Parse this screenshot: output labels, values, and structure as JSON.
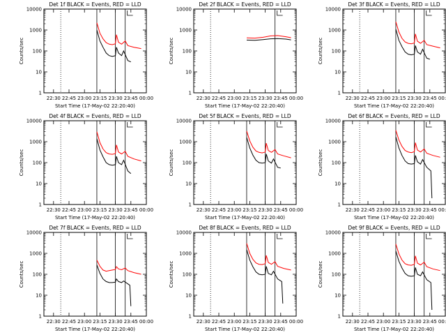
{
  "figure": {
    "x_axis_label": "Start Time (17-May-02 22:20:40)",
    "y_axis_label": "Counts/sec",
    "x_ticks": [
      "22:30",
      "22:45",
      "23:00",
      "23:15",
      "23:30",
      "23:45",
      "00:00"
    ],
    "y_ticks": [
      "1",
      "10",
      "100",
      "1000",
      "10000"
    ],
    "colors": {
      "events": "#000000",
      "lld": "#ff0000"
    }
  },
  "chart_data": [
    {
      "type": "line",
      "title": "Det 1f BLACK = Events, RED = LLD",
      "xlim": [
        "22:20:40",
        "00:00"
      ],
      "ylim": [
        1,
        10000
      ],
      "yscale": "log",
      "dotted_markers": [
        "22:20:40",
        "22:37:00"
      ],
      "solid_markers": [
        "23:12:00",
        "23:30:00",
        "23:39:30"
      ],
      "series": [
        {
          "key": "events",
          "x": [
            "23:12:00",
            "23:15:00",
            "23:18:00",
            "23:21:00",
            "23:24:00",
            "23:27:00",
            "23:30:00",
            "23:31:00",
            "23:33:00",
            "23:36:00",
            "23:38:00",
            "23:42:00",
            "23:45:00"
          ],
          "values": [
            1000,
            300,
            150,
            80,
            60,
            55,
            60,
            150,
            80,
            60,
            100,
            35,
            30
          ]
        },
        {
          "key": "lld",
          "x": [
            "23:12:00",
            "23:15:00",
            "23:18:00",
            "23:21:00",
            "23:24:00",
            "23:27:00",
            "23:30:00",
            "23:31:00",
            "23:33:00",
            "23:36:00",
            "23:39:30",
            "23:42:00",
            "23:48:00",
            "23:55:00"
          ],
          "values": [
            2200,
            700,
            380,
            250,
            210,
            200,
            220,
            600,
            260,
            210,
            300,
            180,
            150,
            130
          ]
        }
      ]
    },
    {
      "type": "line",
      "title": "Det 2f BLACK = Events, RED = LLD",
      "xlim": [
        "22:20:40",
        "00:00"
      ],
      "ylim": [
        1,
        10000
      ],
      "yscale": "log",
      "dotted_markers": [
        "22:20:40",
        "22:37:00"
      ],
      "solid_markers": [
        "23:39:30"
      ],
      "series": [
        {
          "key": "events",
          "x": [
            "23:12:00",
            "23:20:00",
            "23:28:00",
            "23:35:00",
            "23:42:00",
            "23:50:00",
            "23:55:00"
          ],
          "values": [
            330,
            320,
            350,
            380,
            390,
            370,
            340
          ]
        },
        {
          "key": "lld",
          "x": [
            "23:12:00",
            "23:20:00",
            "23:28:00",
            "23:35:00",
            "23:42:00",
            "23:50:00",
            "23:55:00"
          ],
          "values": [
            420,
            410,
            450,
            520,
            540,
            480,
            430
          ]
        }
      ]
    },
    {
      "type": "line",
      "title": "Det 3f BLACK = Events, RED = LLD",
      "xlim": [
        "22:20:40",
        "00:00"
      ],
      "ylim": [
        1,
        10000
      ],
      "yscale": "log",
      "dotted_markers": [
        "22:20:40",
        "22:37:00"
      ],
      "solid_markers": [
        "23:12:00",
        "23:30:00",
        "23:39:30"
      ],
      "series": [
        {
          "key": "events",
          "x": [
            "23:12:00",
            "23:15:00",
            "23:18:00",
            "23:21:00",
            "23:24:00",
            "23:27:00",
            "23:30:00",
            "23:31:00",
            "23:33:00",
            "23:36:00",
            "23:38:00",
            "23:42:00",
            "23:45:00"
          ],
          "values": [
            1100,
            320,
            160,
            90,
            70,
            65,
            70,
            180,
            90,
            70,
            120,
            45,
            40
          ]
        },
        {
          "key": "lld",
          "x": [
            "23:12:00",
            "23:15:00",
            "23:18:00",
            "23:21:00",
            "23:24:00",
            "23:27:00",
            "23:30:00",
            "23:31:00",
            "23:33:00",
            "23:36:00",
            "23:39:30",
            "23:42:00",
            "23:48:00",
            "23:55:00"
          ],
          "values": [
            2500,
            800,
            400,
            270,
            230,
            220,
            240,
            650,
            290,
            230,
            320,
            200,
            170,
            140
          ]
        }
      ]
    },
    {
      "type": "line",
      "title": "Det 4f BLACK = Events, RED = LLD",
      "xlim": [
        "22:20:40",
        "00:00"
      ],
      "ylim": [
        1,
        10000
      ],
      "yscale": "log",
      "dotted_markers": [
        "22:20:40",
        "22:37:00"
      ],
      "solid_markers": [
        "23:12:00",
        "23:30:00",
        "23:39:30"
      ],
      "series": [
        {
          "key": "events",
          "x": [
            "23:12:00",
            "23:15:00",
            "23:18:00",
            "23:21:00",
            "23:24:00",
            "23:27:00",
            "23:30:00",
            "23:31:00",
            "23:33:00",
            "23:36:00",
            "23:38:00",
            "23:42:00",
            "23:45:00"
          ],
          "values": [
            1400,
            400,
            190,
            100,
            80,
            75,
            80,
            200,
            100,
            80,
            130,
            40,
            30
          ]
        },
        {
          "key": "lld",
          "x": [
            "23:12:00",
            "23:15:00",
            "23:18:00",
            "23:21:00",
            "23:24:00",
            "23:27:00",
            "23:30:00",
            "23:31:00",
            "23:33:00",
            "23:36:00",
            "23:39:30",
            "23:42:00",
            "23:48:00",
            "23:55:00"
          ],
          "values": [
            3000,
            900,
            450,
            300,
            260,
            250,
            270,
            700,
            320,
            260,
            350,
            200,
            150,
            120
          ]
        }
      ]
    },
    {
      "type": "line",
      "title": "Det 5f BLACK = Events, RED = LLD",
      "xlim": [
        "22:20:40",
        "00:00"
      ],
      "ylim": [
        1,
        10000
      ],
      "yscale": "log",
      "dotted_markers": [
        "22:20:40",
        "22:37:00"
      ],
      "solid_markers": [
        "23:12:00",
        "23:30:00",
        "23:39:30"
      ],
      "series": [
        {
          "key": "events",
          "x": [
            "23:12:00",
            "23:15:00",
            "23:18:00",
            "23:21:00",
            "23:24:00",
            "23:27:00",
            "23:30:00",
            "23:31:00",
            "23:33:00",
            "23:36:00",
            "23:38:00",
            "23:42:00",
            "23:45:00"
          ],
          "values": [
            1600,
            500,
            230,
            130,
            100,
            95,
            100,
            260,
            120,
            95,
            150,
            60,
            55
          ]
        },
        {
          "key": "lld",
          "x": [
            "23:12:00",
            "23:15:00",
            "23:18:00",
            "23:21:00",
            "23:24:00",
            "23:27:00",
            "23:30:00",
            "23:31:00",
            "23:33:00",
            "23:36:00",
            "23:39:30",
            "23:42:00",
            "23:48:00",
            "23:55:00"
          ],
          "values": [
            3200,
            1100,
            550,
            360,
            310,
            290,
            320,
            850,
            380,
            310,
            420,
            260,
            210,
            170
          ]
        }
      ]
    },
    {
      "type": "line",
      "title": "Det 6f BLACK = Events, RED = LLD",
      "xlim": [
        "22:20:40",
        "00:00"
      ],
      "ylim": [
        1,
        10000
      ],
      "yscale": "log",
      "dotted_markers": [
        "22:20:40",
        "22:37:00"
      ],
      "solid_markers": [
        "23:12:00",
        "23:30:00",
        "23:39:30"
      ],
      "series": [
        {
          "key": "events",
          "x": [
            "23:12:00",
            "23:15:00",
            "23:18:00",
            "23:21:00",
            "23:24:00",
            "23:27:00",
            "23:30:00",
            "23:31:00",
            "23:33:00",
            "23:36:00",
            "23:38:00",
            "23:42:00",
            "23:46:00",
            "23:47:00"
          ],
          "values": [
            1700,
            500,
            220,
            120,
            90,
            85,
            90,
            220,
            110,
            85,
            140,
            60,
            40,
            2
          ]
        },
        {
          "key": "lld",
          "x": [
            "23:12:00",
            "23:15:00",
            "23:18:00",
            "23:21:00",
            "23:24:00",
            "23:27:00",
            "23:30:00",
            "23:31:00",
            "23:33:00",
            "23:36:00",
            "23:39:30",
            "23:42:00",
            "23:48:00",
            "23:55:00"
          ],
          "values": [
            3500,
            1200,
            600,
            380,
            320,
            300,
            330,
            900,
            400,
            320,
            450,
            280,
            220,
            180
          ]
        }
      ]
    },
    {
      "type": "line",
      "title": "Det 7f BLACK = Events, RED = LLD",
      "xlim": [
        "22:20:40",
        "00:00"
      ],
      "ylim": [
        1,
        10000
      ],
      "yscale": "log",
      "dotted_markers": [
        "22:20:40",
        "22:37:00"
      ],
      "solid_markers": [
        "23:12:00",
        "23:30:00",
        "23:39:30"
      ],
      "series": [
        {
          "key": "events",
          "x": [
            "23:12:00",
            "23:15:00",
            "23:18:00",
            "23:21:00",
            "23:24:00",
            "23:27:00",
            "23:30:00",
            "23:31:00",
            "23:33:00",
            "23:36:00",
            "23:38:00",
            "23:42:00",
            "23:44:00",
            "23:45:00"
          ],
          "values": [
            280,
            110,
            60,
            45,
            40,
            40,
            42,
            60,
            45,
            40,
            48,
            35,
            30,
            3
          ]
        },
        {
          "key": "lld",
          "x": [
            "23:12:00",
            "23:15:00",
            "23:18:00",
            "23:21:00",
            "23:24:00",
            "23:27:00",
            "23:30:00",
            "23:31:00",
            "23:33:00",
            "23:36:00",
            "23:39:30",
            "23:42:00",
            "23:48:00",
            "23:55:00"
          ],
          "values": [
            480,
            240,
            160,
            140,
            150,
            160,
            170,
            230,
            180,
            165,
            200,
            150,
            120,
            100
          ]
        }
      ]
    },
    {
      "type": "line",
      "title": "Det 8f BLACK = Events, RED = LLD",
      "xlim": [
        "22:20:40",
        "00:00"
      ],
      "ylim": [
        1,
        10000
      ],
      "yscale": "log",
      "dotted_markers": [
        "22:20:40",
        "22:37:00"
      ],
      "solid_markers": [
        "23:12:00",
        "23:30:00",
        "23:39:30"
      ],
      "series": [
        {
          "key": "events",
          "x": [
            "23:12:00",
            "23:15:00",
            "23:18:00",
            "23:21:00",
            "23:24:00",
            "23:27:00",
            "23:30:00",
            "23:31:00",
            "23:33:00",
            "23:36:00",
            "23:38:00",
            "23:42:00",
            "23:46:00",
            "23:47:00"
          ],
          "values": [
            1500,
            480,
            230,
            130,
            100,
            95,
            100,
            240,
            110,
            95,
            140,
            60,
            45,
            4
          ]
        },
        {
          "key": "lld",
          "x": [
            "23:12:00",
            "23:15:00",
            "23:18:00",
            "23:21:00",
            "23:24:00",
            "23:27:00",
            "23:30:00",
            "23:31:00",
            "23:33:00",
            "23:36:00",
            "23:39:30",
            "23:42:00",
            "23:48:00",
            "23:55:00"
          ],
          "values": [
            3000,
            1000,
            520,
            350,
            300,
            290,
            320,
            800,
            370,
            300,
            400,
            240,
            190,
            160
          ]
        }
      ]
    },
    {
      "type": "line",
      "title": "Det 9f BLACK = Events, RED = LLD",
      "xlim": [
        "22:20:40",
        "00:00"
      ],
      "ylim": [
        1,
        10000
      ],
      "yscale": "log",
      "dotted_markers": [
        "22:20:40",
        "22:37:00"
      ],
      "solid_markers": [
        "23:12:00",
        "23:30:00",
        "23:39:30"
      ],
      "series": [
        {
          "key": "events",
          "x": [
            "23:12:00",
            "23:15:00",
            "23:18:00",
            "23:21:00",
            "23:24:00",
            "23:27:00",
            "23:30:00",
            "23:31:00",
            "23:33:00",
            "23:36:00",
            "23:38:00",
            "23:42:00",
            "23:46:00",
            "23:47:00"
          ],
          "values": [
            1300,
            420,
            200,
            110,
            85,
            80,
            85,
            210,
            100,
            85,
            130,
            55,
            40,
            2
          ]
        },
        {
          "key": "lld",
          "x": [
            "23:12:00",
            "23:15:00",
            "23:18:00",
            "23:21:00",
            "23:24:00",
            "23:27:00",
            "23:30:00",
            "23:31:00",
            "23:33:00",
            "23:36:00",
            "23:39:30",
            "23:42:00",
            "23:48:00",
            "23:55:00"
          ],
          "values": [
            2800,
            950,
            480,
            320,
            280,
            270,
            300,
            760,
            340,
            280,
            380,
            230,
            180,
            150
          ]
        }
      ]
    }
  ]
}
